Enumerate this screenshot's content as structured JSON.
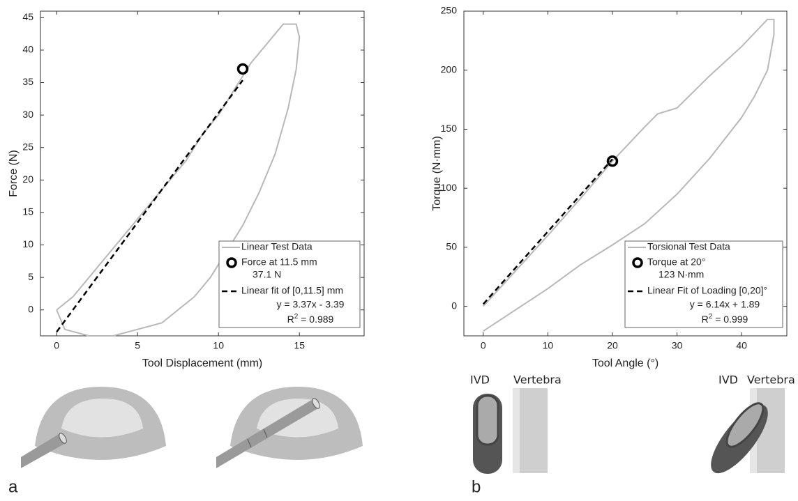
{
  "chart_data": [
    {
      "type": "line",
      "xlabel": "Tool Displacement (mm)",
      "ylabel": "Force (N)",
      "xlim": [
        -1,
        19
      ],
      "ylim": [
        -4,
        46
      ],
      "xticks": [
        0,
        5,
        10,
        15
      ],
      "yticks": [
        0,
        5,
        10,
        15,
        20,
        25,
        30,
        35,
        40,
        45
      ],
      "series": [
        {
          "name": "Linear Test Data",
          "color": "#b8b8b8",
          "style": "solid",
          "x": [
            0,
            1,
            2,
            3,
            4,
            5,
            6,
            7,
            8,
            9,
            10,
            11,
            12,
            13,
            14,
            14.8,
            15,
            14.8,
            14.3,
            13.5,
            12.5,
            11.5,
            10.5,
            9.5,
            8.5,
            7.5,
            6.5,
            5,
            3.5,
            2,
            0.5,
            0
          ],
          "values": [
            0,
            2,
            5,
            8,
            11,
            14,
            17,
            20,
            23,
            27,
            30,
            34,
            38,
            41,
            44,
            44,
            42,
            37,
            31,
            24,
            18,
            13,
            9,
            5,
            2,
            0,
            -2,
            -3,
            -4,
            -4,
            -3,
            0
          ]
        },
        {
          "name": "Force at 11.5 mm",
          "color": "#000000",
          "style": "marker",
          "x": [
            11.5
          ],
          "values": [
            37.1
          ],
          "value_labels": [
            "37.1 N"
          ]
        },
        {
          "name": "Linear fit of [0,11.5] mm",
          "color": "#000000",
          "style": "dashed",
          "x": [
            0,
            11.5
          ],
          "values": [
            -3.39,
            35.37
          ],
          "equation": "y = 3.37x - 3.39",
          "r2_base": "R",
          "r2_exp": "2",
          "r2_rest": " = 0.989"
        }
      ]
    },
    {
      "type": "line",
      "xlabel": "Tool Angle (°)",
      "ylabel": "Torque (N·mm)",
      "xlim": [
        -3,
        47
      ],
      "ylim": [
        -25,
        250
      ],
      "xticks": [
        0,
        10,
        20,
        30,
        40
      ],
      "yticks": [
        0,
        50,
        100,
        150,
        200,
        250
      ],
      "series": [
        {
          "name": "Torsional Test Data",
          "color": "#b8b8b8",
          "style": "solid",
          "x": [
            0,
            5,
            10,
            15,
            20,
            25,
            27,
            30,
            35,
            40,
            44,
            45,
            45,
            44,
            42,
            40,
            35,
            30,
            25,
            20,
            15,
            10,
            5,
            0
          ],
          "values": [
            0,
            30,
            60,
            91,
            123,
            152,
            163,
            168,
            195,
            220,
            243,
            243,
            230,
            200,
            178,
            160,
            125,
            95,
            70,
            52,
            35,
            15,
            -3,
            -21
          ]
        },
        {
          "name": "Torque at 20°",
          "color": "#000000",
          "style": "marker",
          "x": [
            20
          ],
          "values": [
            123
          ],
          "value_labels": [
            "123 N·mm"
          ]
        },
        {
          "name": "Linear Fit of Loading [0,20]°",
          "color": "#000000",
          "style": "dashed",
          "x": [
            0,
            20
          ],
          "values": [
            1.89,
            124.69
          ],
          "equation": "y = 6.14x + 1.89",
          "r2_base": "R",
          "r2_exp": "2",
          "r2_rest": " = 0.999"
        }
      ]
    }
  ],
  "illustrations": {
    "panel_a": "a",
    "panel_b": "b",
    "ivd": "IVD",
    "vertebra": "Vertebra"
  }
}
